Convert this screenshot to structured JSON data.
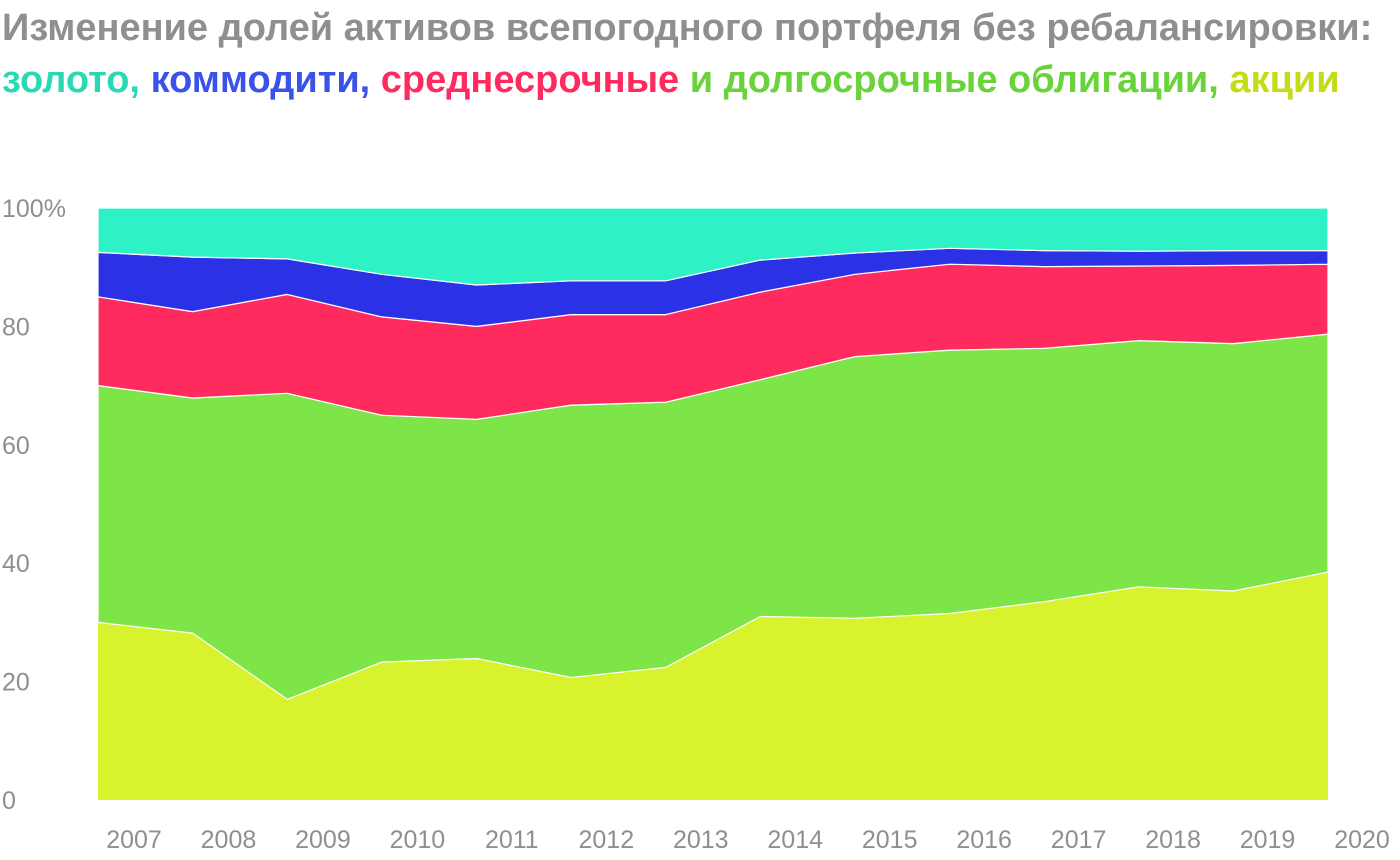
{
  "colors": {
    "title_text": "#8f8f8f",
    "gold": "#2ef2c6",
    "commodities": "#2b31e5",
    "bonds": "#ff2a5d",
    "bonds_title": "#ff2a5d",
    "long_bonds": "#7de547",
    "stocks": "#d8f22e",
    "stocks_title": "#c4dc16",
    "gold_title": "#2ad9b3",
    "commodities_title": "#3a52e8",
    "long_bonds_title": "#6ad33b"
  },
  "title": {
    "part1": "Изменение долей активов всепогодного портфеля без ребалансировки: ",
    "gold": "золото,",
    "commodities": "коммодити,",
    "mid_bonds": "среднесрочные",
    "long_bonds": "и долгосрочные облигации,",
    "stocks": "акции"
  },
  "chart_data": {
    "type": "area",
    "stacked": true,
    "x": [
      2007,
      2008,
      2009,
      2010,
      2011,
      2012,
      2013,
      2014,
      2015,
      2016,
      2017,
      2018,
      2019,
      2020
    ],
    "x_ticks": [
      "2007",
      "2008",
      "2009",
      "2010",
      "2011",
      "2012",
      "2013",
      "2014",
      "2015",
      "2016",
      "2017",
      "2018",
      "2019",
      "2020"
    ],
    "y_ticks": [
      "0",
      "20",
      "40",
      "60",
      "80",
      "100%"
    ],
    "ylim": [
      0,
      100
    ],
    "grid": false,
    "series": [
      {
        "name": "акции",
        "color_key": "stocks",
        "values": [
          30.0,
          28.2,
          17.0,
          23.3,
          23.9,
          20.7,
          22.4,
          31.0,
          30.7,
          31.5,
          33.5,
          36.0,
          35.3,
          38.5
        ]
      },
      {
        "name": "долгосрочные облигации",
        "color_key": "long_bonds",
        "values": [
          40.0,
          39.7,
          51.7,
          41.7,
          40.4,
          46.0,
          44.8,
          40.0,
          44.2,
          44.5,
          42.8,
          41.6,
          41.8,
          40.2
        ]
      },
      {
        "name": "среднесрочные облигации",
        "color_key": "bonds",
        "values": [
          15.0,
          14.6,
          16.7,
          16.6,
          15.7,
          15.3,
          14.8,
          14.8,
          13.9,
          14.5,
          13.8,
          12.6,
          13.2,
          11.8
        ]
      },
      {
        "name": "коммодити",
        "color_key": "commodities",
        "values": [
          7.5,
          9.2,
          6.0,
          7.2,
          7.0,
          5.7,
          5.7,
          5.4,
          3.6,
          2.7,
          2.7,
          2.5,
          2.5,
          2.3
        ]
      },
      {
        "name": "золото",
        "color_key": "gold",
        "values": [
          7.5,
          8.3,
          8.6,
          11.2,
          13.0,
          12.3,
          12.3,
          8.8,
          7.6,
          6.8,
          7.2,
          7.3,
          7.2,
          7.2
        ]
      }
    ]
  }
}
